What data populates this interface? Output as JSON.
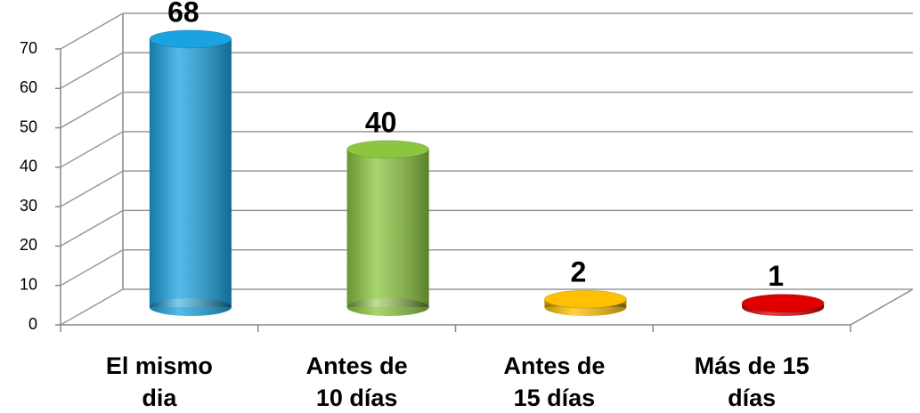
{
  "chart_data": {
    "type": "bar3d",
    "categories": [
      "El mismo dia",
      "Antes de 10 días",
      "Antes de 15 días",
      "Más de 15 días"
    ],
    "values": [
      68,
      40,
      2,
      1
    ],
    "colors": [
      "#1aa3e0",
      "#8cc63f",
      "#ffc000",
      "#e00000"
    ],
    "ylim": [
      0,
      70
    ],
    "yticks": [
      0,
      10,
      20,
      30,
      40,
      50,
      60,
      70
    ],
    "grid": true
  }
}
